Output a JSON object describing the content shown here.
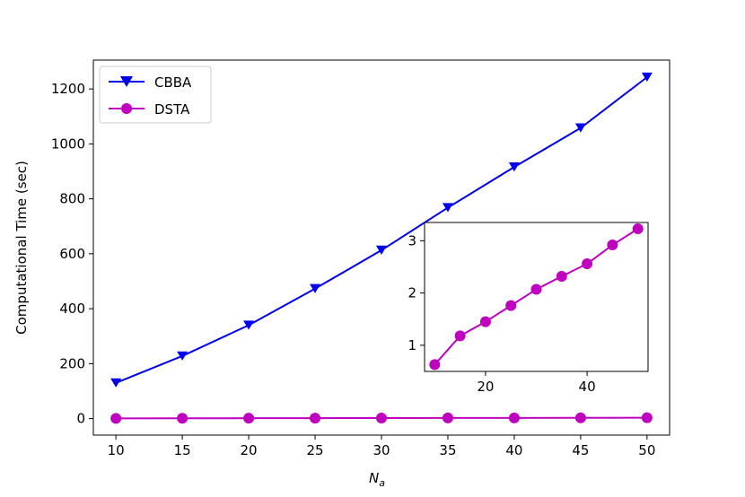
{
  "chart_data": [
    {
      "type": "line",
      "xlabel_main": "N",
      "xlabel_sub": "a",
      "ylabel": "Computational Time (sec)",
      "x": [
        10,
        15,
        20,
        25,
        30,
        35,
        40,
        45,
        50
      ],
      "xticks": [
        10,
        15,
        20,
        25,
        30,
        35,
        40,
        45,
        50
      ],
      "yticks": [
        0,
        200,
        400,
        600,
        800,
        1000,
        1200
      ],
      "xlim": [
        8.3,
        51.7
      ],
      "ylim": [
        -60,
        1305
      ],
      "legend_position": "top-left",
      "series": [
        {
          "name": "CBBA",
          "color": "#0000ee",
          "marker": "triangle-down",
          "values": [
            130,
            228,
            340,
            473,
            613,
            768,
            916,
            1058,
            1243
          ]
        },
        {
          "name": "DSTA",
          "color": "#bf00bf",
          "marker": "circle",
          "values": [
            0.63,
            1.18,
            1.45,
            1.76,
            2.07,
            2.32,
            2.56,
            2.92,
            3.23
          ]
        }
      ]
    },
    {
      "type": "line",
      "role": "inset",
      "x": [
        10,
        15,
        20,
        25,
        30,
        35,
        40,
        45,
        50
      ],
      "xticks": [
        20,
        40
      ],
      "yticks": [
        1,
        2,
        3
      ],
      "xlim": [
        8,
        52
      ],
      "ylim": [
        0.5,
        3.35
      ],
      "series": [
        {
          "name": "DSTA",
          "color": "#bf00bf",
          "marker": "circle",
          "values": [
            0.63,
            1.18,
            1.45,
            1.76,
            2.07,
            2.32,
            2.56,
            2.92,
            3.23
          ]
        }
      ]
    }
  ]
}
